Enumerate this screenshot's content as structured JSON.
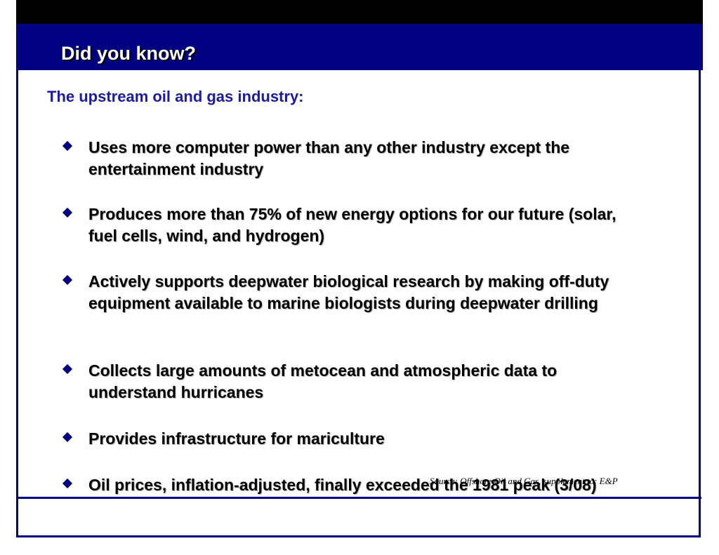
{
  "slide": {
    "title": "Did you know?",
    "subtitle": "The upstream oil and gas industry:",
    "bullets": [
      "Uses more computer power than any other industry except the entertainment industry",
      "Produces more than 75% of new energy options for our future (solar, fuel cells, wind, and hydrogen)",
      "Actively supports deepwater biological research by making off-duty equipment available to marine biologists during deepwater drilling",
      "Collects large amounts of metocean and atmospheric data to understand hurricanes",
      "Provides infrastructure for mariculture",
      "Oil prices, inflation-adjusted, finally exceeded the 1981 peak (3/08)"
    ],
    "source": "Source: Offshore Oil and Gas, supplement to: E&P"
  },
  "colors": {
    "header": "#000080",
    "subtitle": "#1a1aa6",
    "bullet": "#000080"
  }
}
